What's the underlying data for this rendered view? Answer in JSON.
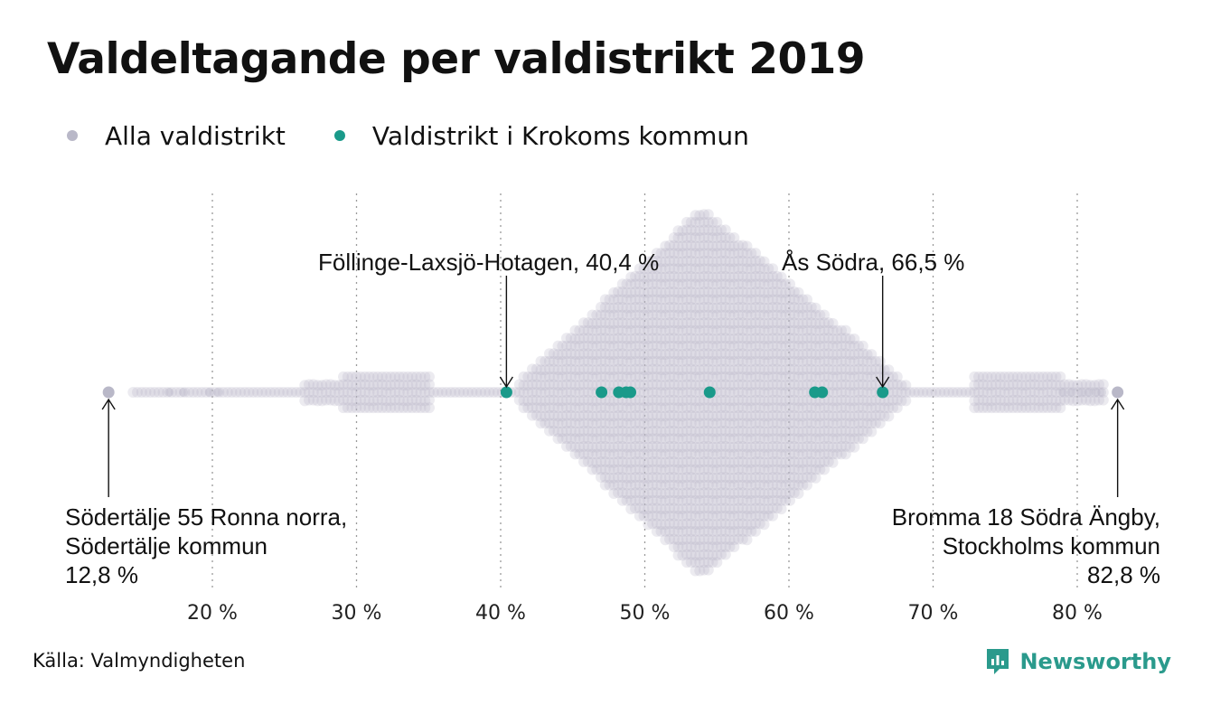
{
  "title": "Valdeltagande per valdistrikt 2019",
  "legend": [
    {
      "label": "Alla valdistrikt",
      "color": "#b9b8c8"
    },
    {
      "label": "Valdistrikt i Krokoms kommun",
      "color": "#1a9a8a"
    }
  ],
  "annotations": {
    "min": {
      "line1": "Södertälje 55 Ronna norra,",
      "line2": "Södertälje kommun",
      "line3": "12,8 %"
    },
    "max": {
      "line1": "Bromma 18 Södra Ängby,",
      "line2": "Stockholms kommun",
      "line3": "82,8 %"
    },
    "highlight_low": "Föllinge-Laxsjö-Hotagen, 40,4 %",
    "highlight_high": "Ås Södra, 66,5 %"
  },
  "source": "Källa: Valmyndigheten",
  "brand": {
    "name": "Newsworthy",
    "icon": "newsworthy-logo-icon"
  },
  "chart_data": {
    "type": "scatter",
    "subtype": "beeswarm",
    "title": "Valdeltagande per valdistrikt 2019",
    "x_label": "",
    "x_range": [
      13,
      85
    ],
    "x_ticks": [
      20,
      30,
      40,
      50,
      60,
      70,
      80
    ],
    "x_tick_labels": [
      "20 %",
      "30 %",
      "40 %",
      "50 %",
      "60 %",
      "70 %",
      "80 %"
    ],
    "grid": "vertical dotted",
    "series": [
      {
        "name": "Alla valdistrikt",
        "color": "#b9b8c8",
        "distribution_note": "dense beeswarm of all districts, peak around 54 %",
        "extremes": [
          12.8,
          82.8
        ]
      },
      {
        "name": "Valdistrikt i Krokoms kommun",
        "color": "#1a9a8a",
        "values": [
          40.4,
          47.0,
          48.2,
          48.7,
          49.0,
          54.5,
          61.8,
          62.3,
          66.5
        ]
      }
    ]
  }
}
